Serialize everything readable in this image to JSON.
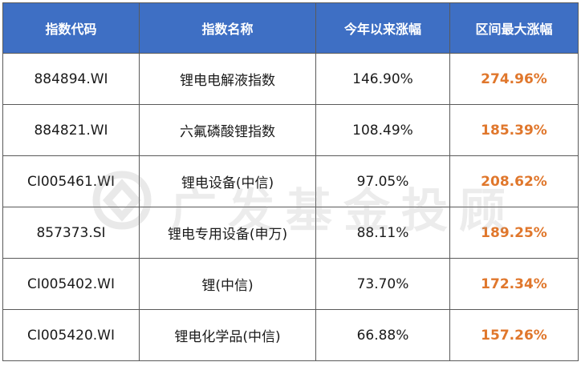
{
  "table": {
    "headers": [
      "指数代码",
      "指数名称",
      "今年以来涨幅",
      "区间最大涨幅"
    ],
    "rows": [
      {
        "code": "884894.WI",
        "name": "锂电电解液指数",
        "ytd": "146.90%",
        "max": "274.96%"
      },
      {
        "code": "884821.WI",
        "name": "六氟磷酸锂指数",
        "ytd": "108.49%",
        "max": "185.39%"
      },
      {
        "code": "CI005461.WI",
        "name": "锂电设备(中信)",
        "ytd": "97.05%",
        "max": "208.62%"
      },
      {
        "code": "857373.SI",
        "name": "锂电专用设备(申万)",
        "ytd": "88.11%",
        "max": "189.25%"
      },
      {
        "code": "CI005402.WI",
        "name": "锂(中信)",
        "ytd": "73.70%",
        "max": "172.34%"
      },
      {
        "code": "CI005420.WI",
        "name": "锂电化学品(中信)",
        "ytd": "66.88%",
        "max": "157.26%"
      }
    ]
  },
  "watermark": {
    "text": "广发基金投顾"
  },
  "colors": {
    "header_bg": "#3e6fc4",
    "header_text": "#ffffff",
    "highlight": "#e0772c",
    "border": "#5a5a5a"
  }
}
